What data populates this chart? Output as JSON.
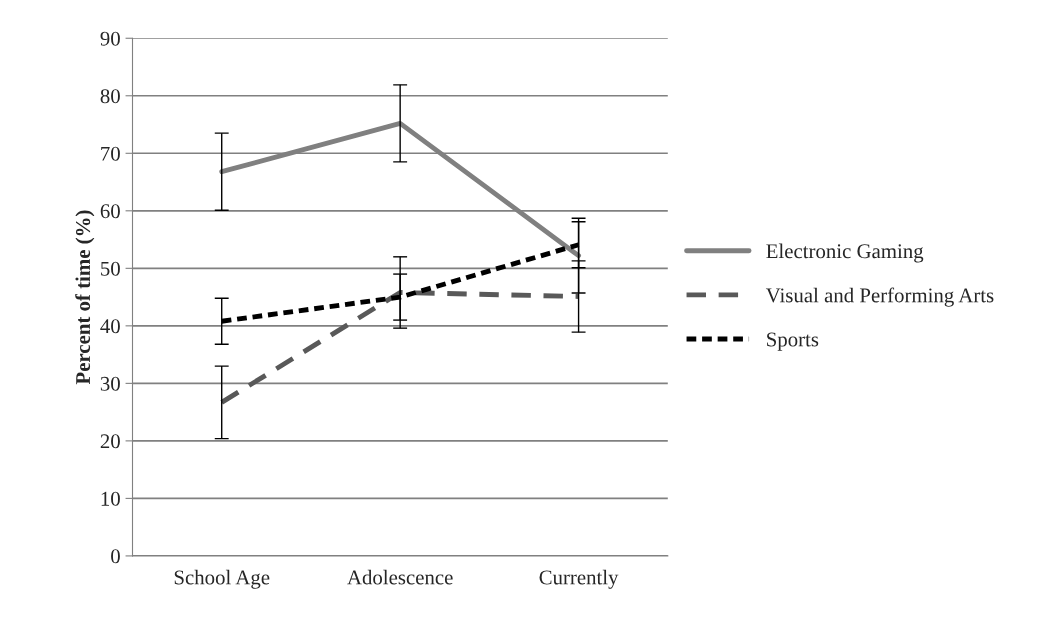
{
  "chart_data": {
    "type": "line",
    "ylabel": "Percent of time (%)",
    "categories": [
      "School Age",
      "Adolescence",
      "Currently"
    ],
    "series": [
      {
        "name": "Electronic Gaming",
        "color": "#808080",
        "line_style": "solid",
        "values": [
          66.8,
          75.2,
          52.2
        ],
        "errors": [
          6.7,
          6.7,
          6.5
        ]
      },
      {
        "name": "Visual and Performing Arts",
        "color": "#595959",
        "line_style": "dashed",
        "values": [
          26.7,
          45.8,
          45.1
        ],
        "errors": [
          6.3,
          6.2,
          6.2
        ]
      },
      {
        "name": "Sports",
        "color": "#000000",
        "line_style": "dotted",
        "values": [
          40.8,
          45.0,
          54.1
        ],
        "errors": [
          4.0,
          4.0,
          4.0
        ]
      }
    ],
    "ylim": [
      0,
      90
    ],
    "yticks": [
      0,
      10,
      20,
      30,
      40,
      50,
      60,
      70,
      80,
      90
    ],
    "grid": "y",
    "legend": "right",
    "marker": "none"
  }
}
